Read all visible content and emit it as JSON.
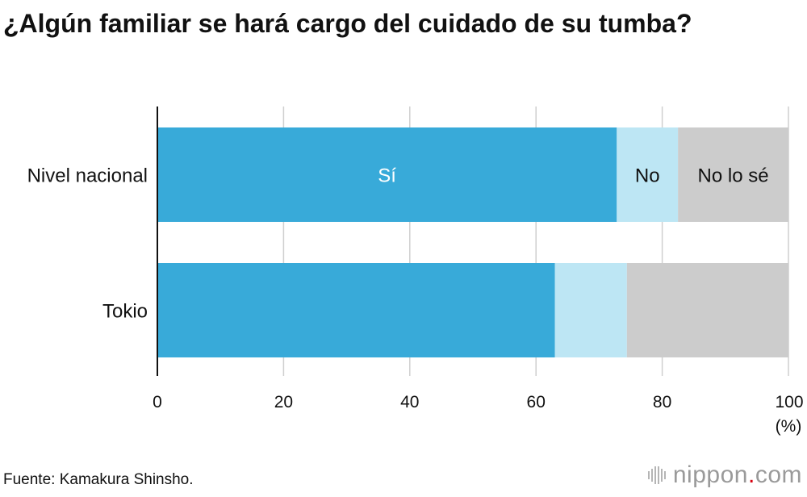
{
  "title": "¿Algún familiar se hará cargo del cuidado de su tumba?",
  "source": "Fuente: Kamakura Shinsho.",
  "logo": {
    "name": "nippon",
    "dot": ".",
    "suffix": "com"
  },
  "colors": {
    "si": "#38aad9",
    "no": "#bde6f4",
    "nolose": "#cccccc",
    "grid": "#cfcfcf",
    "axis": "#111111",
    "logo_dot": "#d7000f"
  },
  "chart_data": {
    "type": "bar",
    "orientation": "horizontal",
    "stacked": true,
    "categories": [
      "Nivel nacional",
      "Tokio"
    ],
    "series": [
      {
        "name": "Sí",
        "values": [
          72.8,
          63.0
        ]
      },
      {
        "name": "No",
        "values": [
          9.7,
          11.4
        ]
      },
      {
        "name": "No lo sé",
        "values": [
          17.5,
          25.6
        ]
      }
    ],
    "xlim": [
      0,
      100
    ],
    "xticks": [
      0,
      20,
      40,
      60,
      80,
      100
    ],
    "xunit": "(%)",
    "segment_labels_on": "Nivel nacional",
    "grid": true,
    "legend": "inline"
  }
}
